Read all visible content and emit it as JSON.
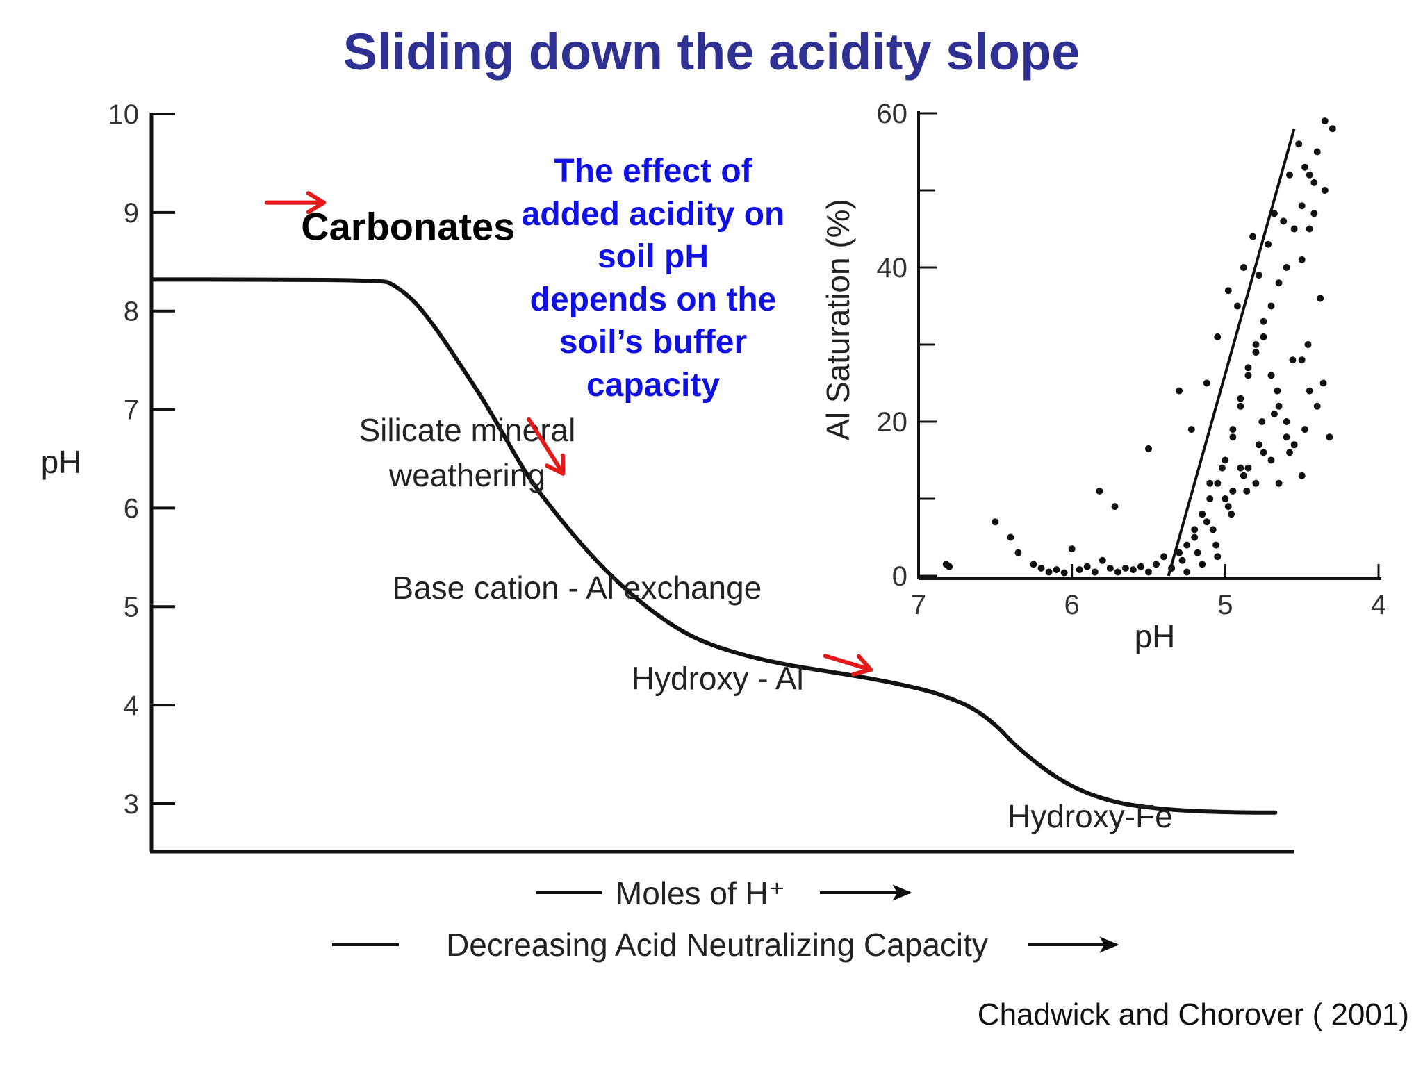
{
  "slide": {
    "title": "Sliding down the acidity slope",
    "callout_lines": [
      "The effect of",
      "added acidity on",
      "soil pH",
      "depends on the",
      "soil’s buffer",
      "capacity"
    ],
    "citation": "Chadwick and Chorover ( 2001)",
    "colors": {
      "title": "#2e3192",
      "callout": "#1010e0",
      "arrows": "#e41a1a",
      "ink": "#111111"
    }
  },
  "chart_data": [
    {
      "type": "line",
      "title": "",
      "ylabel": "pH",
      "xlabel_lines": [
        "Moles of H⁺",
        "Decreasing Acid Neutralizing Capacity"
      ],
      "ylim": [
        2.5,
        10
      ],
      "y_ticks": [
        3,
        4,
        5,
        6,
        7,
        8,
        9,
        10
      ],
      "x_ticks": [],
      "grid": false,
      "series": [
        {
          "x": [
            0,
            0.1,
            0.2,
            0.21,
            0.23,
            0.25,
            0.27,
            0.29,
            0.31,
            0.33,
            0.36,
            0.39,
            0.42,
            0.45,
            0.48,
            0.52,
            0.56,
            0.6,
            0.64,
            0.68,
            0.7,
            0.72,
            0.74,
            0.76,
            0.8,
            0.84,
            0.88,
            0.92,
            0.96,
            0.985
          ],
          "y": [
            8.32,
            8.32,
            8.31,
            8.28,
            8.1,
            7.8,
            7.45,
            7.1,
            6.7,
            6.3,
            5.85,
            5.45,
            5.12,
            4.85,
            4.65,
            4.5,
            4.4,
            4.33,
            4.25,
            4.15,
            4.07,
            3.97,
            3.8,
            3.55,
            3.2,
            3.02,
            2.95,
            2.92,
            2.91,
            2.91
          ]
        }
      ],
      "annotations": [
        {
          "text": "Carbonates",
          "x": 0.13,
          "y": 8.72
        },
        {
          "text": "Silicate mineral",
          "x": 0.16,
          "y": 6.68
        },
        {
          "text": "weathering",
          "x": 0.16,
          "y": 6.22
        },
        {
          "text": "Base cation - Al exchange",
          "x": 0.21,
          "y": 5.08
        },
        {
          "text": "Hydroxy - Al",
          "x": 0.42,
          "y": 4.16
        },
        {
          "text": "Hydroxy-Fe",
          "x": 0.75,
          "y": 2.76
        }
      ],
      "red_arrows": [
        {
          "from": [
            0.1,
            9.1
          ],
          "to": [
            0.15,
            9.1
          ]
        },
        {
          "from": [
            0.33,
            6.9
          ],
          "to": [
            0.36,
            6.35
          ]
        },
        {
          "from": [
            0.59,
            4.5
          ],
          "to": [
            0.63,
            4.36
          ]
        }
      ]
    },
    {
      "type": "scatter",
      "title": "",
      "xlabel": "pH",
      "ylabel": "Al Saturation (%)",
      "xlim": [
        7,
        4
      ],
      "ylim": [
        0,
        60
      ],
      "x_ticks": [
        7,
        6,
        5,
        4
      ],
      "y_ticks": [
        0,
        20,
        40,
        60
      ],
      "y_minor_ticks": [
        10,
        30,
        50
      ],
      "grid": false,
      "fit_line": {
        "x": [
          5.37,
          4.55
        ],
        "y": [
          0,
          58
        ]
      },
      "points": {
        "x": [
          6.82,
          6.8,
          6.5,
          6.4,
          6.35,
          6.25,
          6.2,
          6.15,
          6.1,
          6.05,
          6.0,
          5.95,
          5.9,
          5.85,
          5.8,
          5.75,
          5.7,
          5.65,
          5.6,
          5.55,
          5.5,
          5.45,
          5.4,
          5.35,
          5.3,
          5.25,
          5.2,
          5.15,
          5.1,
          5.05,
          5.0,
          4.95,
          4.9,
          4.85,
          4.8,
          4.75,
          4.7,
          4.65,
          4.6,
          4.55,
          4.5,
          4.45,
          4.4,
          4.35,
          4.3,
          5.82,
          5.72,
          5.5,
          5.3,
          5.22,
          5.12,
          5.05,
          4.98,
          4.92,
          4.88,
          4.82,
          4.78,
          4.72,
          4.68,
          4.62,
          4.58,
          4.52,
          4.48,
          4.42,
          4.38,
          4.35,
          5.35,
          5.28,
          5.2,
          5.15,
          5.1,
          5.02,
          4.95,
          4.9,
          4.85,
          4.8,
          4.75,
          4.7,
          4.65,
          4.6,
          4.55,
          4.5,
          4.45,
          4.4,
          5.18,
          5.08,
          4.98,
          4.88,
          4.78,
          4.68,
          4.58,
          4.48,
          5.12,
          5.0,
          4.9,
          4.8,
          4.7,
          4.6,
          4.5,
          5.06,
          4.96,
          4.86,
          4.76,
          4.66,
          4.56,
          4.46,
          4.5,
          4.45,
          4.42,
          4.38,
          4.36,
          4.32,
          5.25,
          5.15,
          5.05,
          4.95,
          4.85,
          4.75,
          4.65
        ],
        "y": [
          1.5,
          1.2,
          7,
          5,
          3,
          1.5,
          1,
          0.5,
          0.8,
          0.4,
          3.5,
          0.8,
          1.2,
          0.5,
          2,
          1,
          0.5,
          1,
          0.8,
          1.2,
          0.5,
          1.5,
          2.5,
          1,
          3,
          4,
          6,
          8,
          10,
          12,
          15,
          18,
          22,
          26,
          30,
          33,
          35,
          38,
          40,
          45,
          48,
          52,
          55,
          50,
          58,
          11,
          9,
          16.5,
          24,
          19,
          25,
          31,
          37,
          35,
          40,
          44,
          39,
          43,
          47,
          46,
          52,
          56,
          53,
          51,
          36,
          59,
          1,
          2,
          5,
          8,
          12,
          14,
          19,
          23,
          27,
          29,
          31,
          26,
          22,
          20,
          17,
          28,
          24,
          22,
          3,
          6,
          9,
          13,
          17,
          21,
          16,
          19,
          7,
          10,
          14,
          12,
          15,
          18,
          13,
          4,
          8,
          11,
          20,
          24,
          28,
          30,
          41,
          45,
          47,
          36,
          25,
          18,
          0.5,
          1.5,
          2.5,
          11,
          14,
          16,
          12
        ]
      }
    }
  ]
}
